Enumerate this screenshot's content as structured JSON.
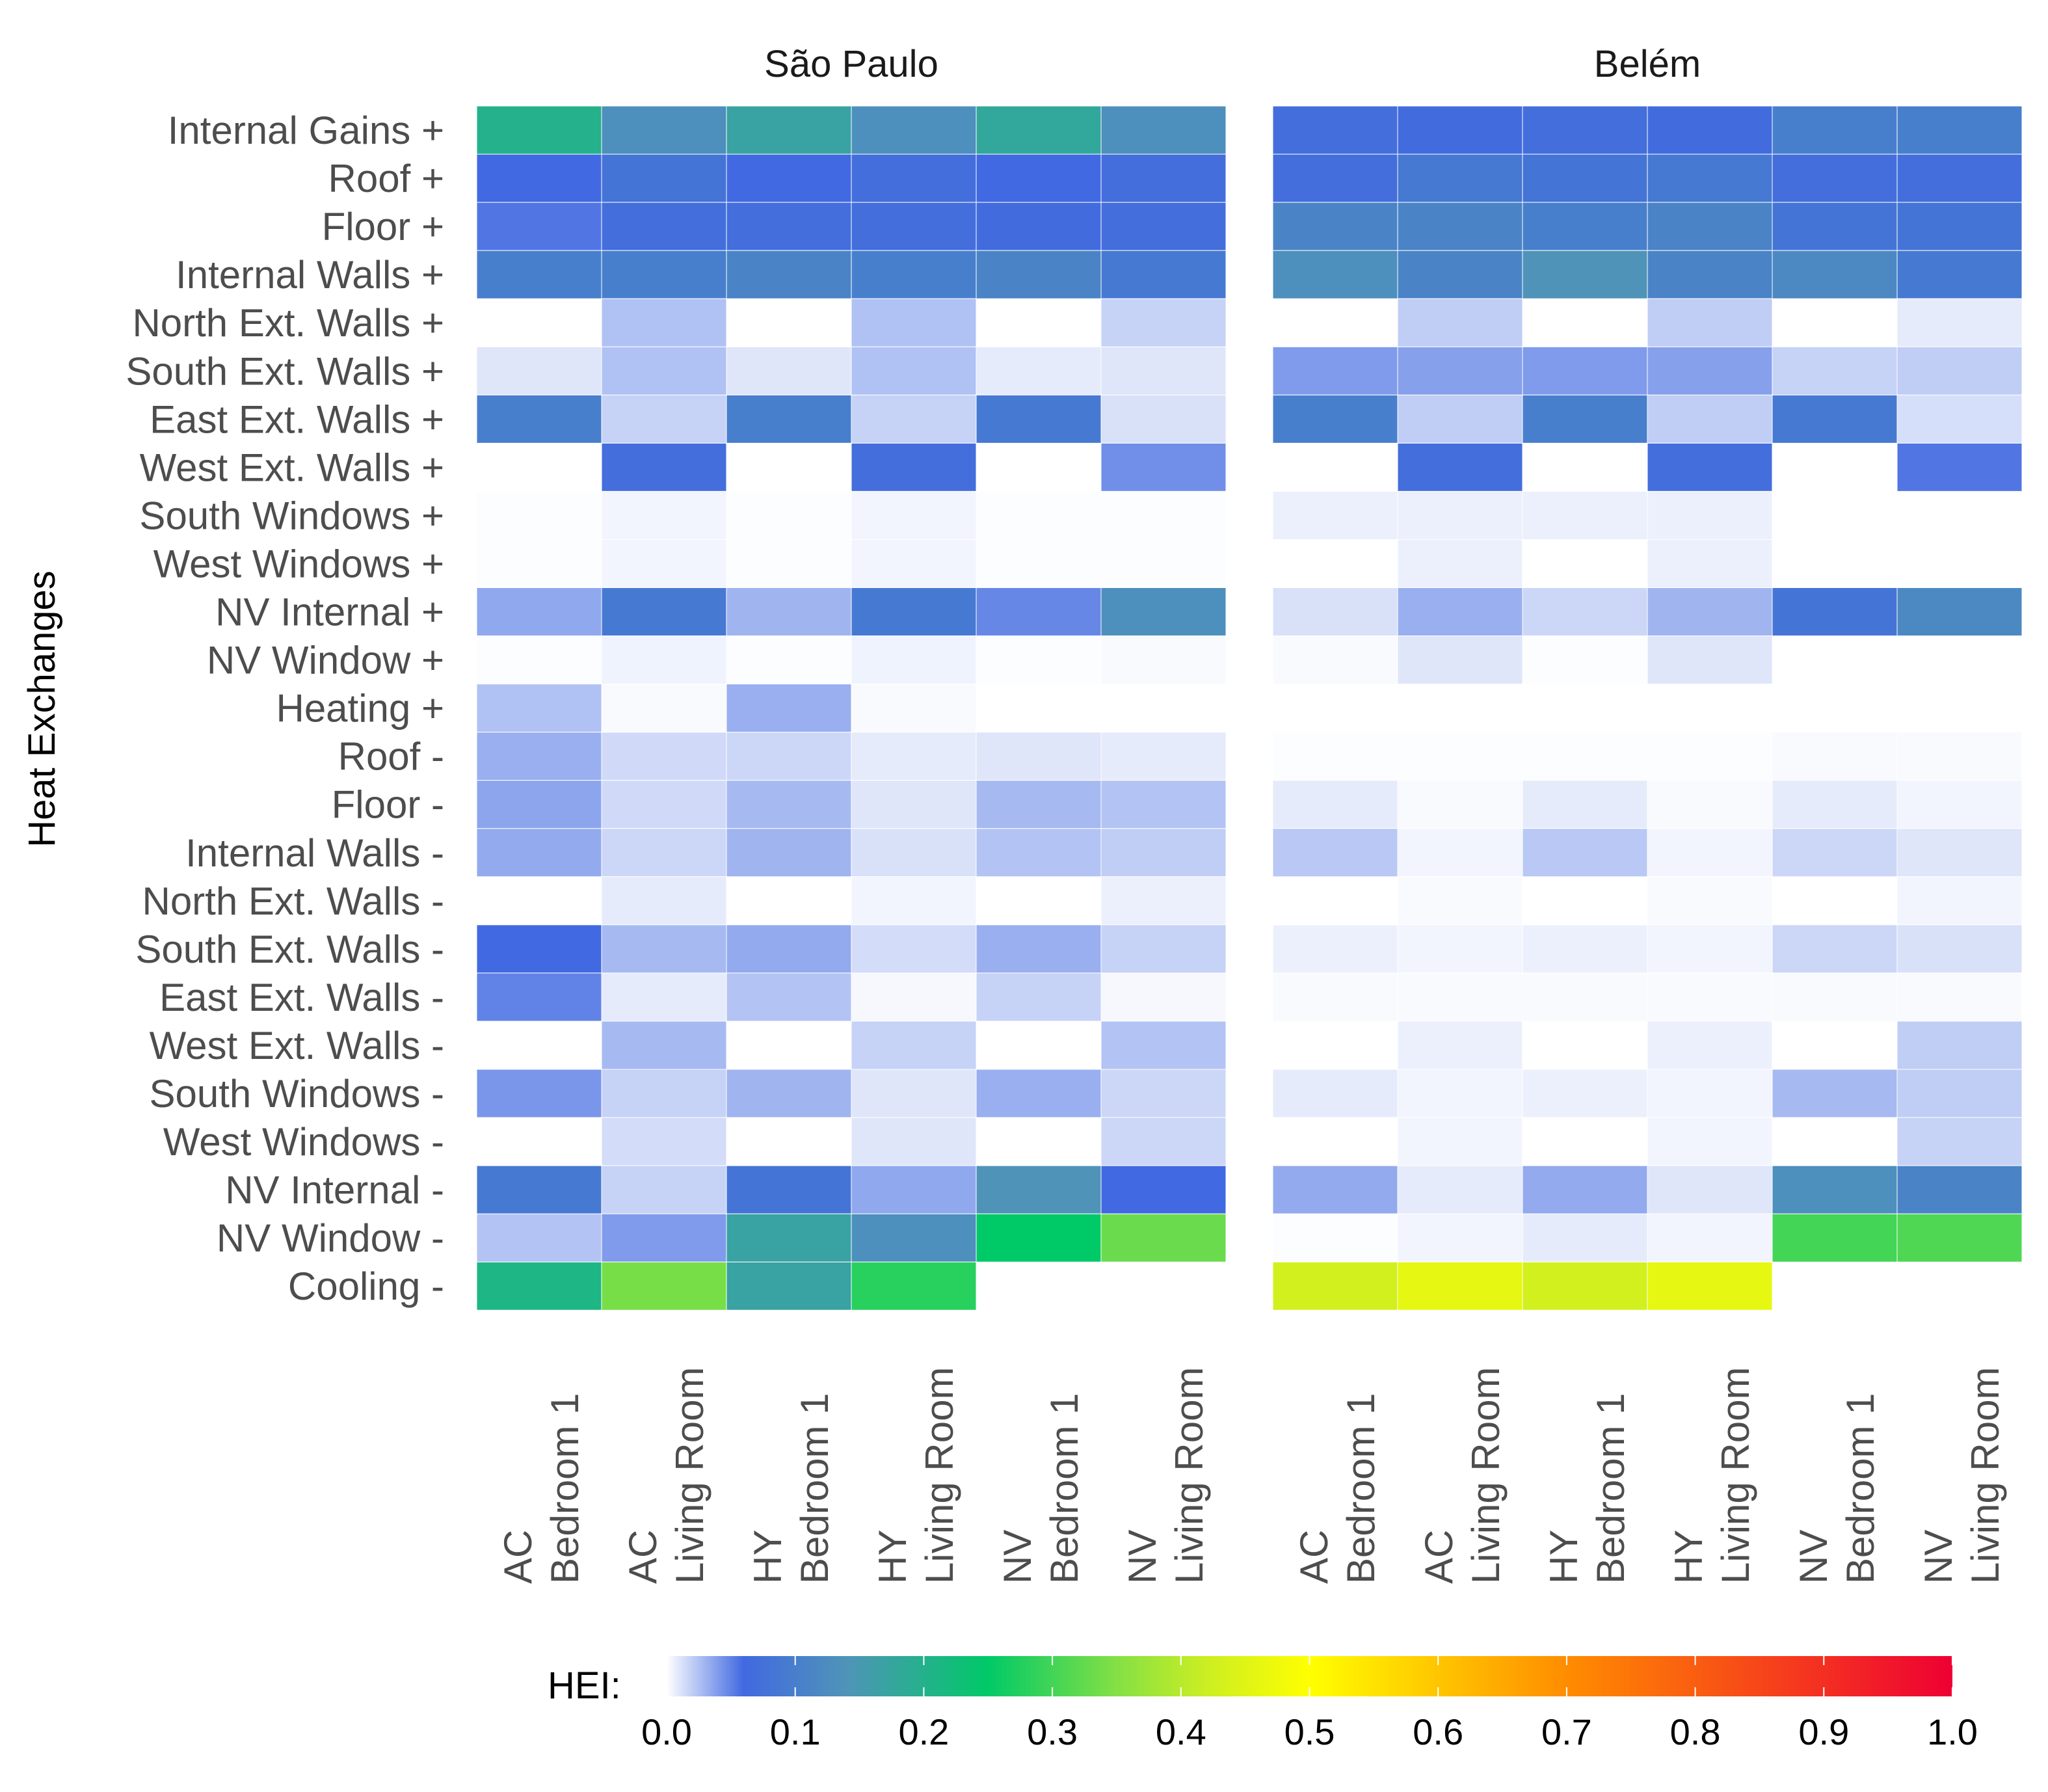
{
  "chart_data": {
    "type": "heatmap",
    "ylabel": "Heat Exchanges",
    "rows": [
      "Internal Gains +",
      "Roof +",
      "Floor +",
      "Internal Walls +",
      "North Ext. Walls +",
      "South Ext. Walls +",
      "East Ext. Walls +",
      "West Ext. Walls +",
      "South Windows +",
      "West Windows +",
      "NV Internal +",
      "NV Window +",
      "Heating +",
      "Roof -",
      "Floor -",
      "Internal Walls -",
      "North Ext. Walls -",
      "South Ext. Walls -",
      "East Ext. Walls -",
      "West Ext. Walls -",
      "South Windows -",
      "West Windows -",
      "NV Internal -",
      "NV Window -",
      "Cooling -"
    ],
    "columns": [
      {
        "line1": "AC",
        "line2": "Bedroom 1"
      },
      {
        "line1": "AC",
        "line2": "Living Room"
      },
      {
        "line1": "HY",
        "line2": "Bedroom 1"
      },
      {
        "line1": "HY",
        "line2": "Living Room"
      },
      {
        "line1": "NV",
        "line2": "Bedroom 1"
      },
      {
        "line1": "NV",
        "line2": "Living Room"
      }
    ],
    "facets": [
      {
        "title": "São Paulo",
        "values": [
          [
            0.2,
            0.13,
            0.17,
            0.13,
            0.18,
            0.13
          ],
          [
            0.06,
            0.08,
            0.06,
            0.07,
            0.06,
            0.07
          ],
          [
            0.055,
            0.07,
            0.07,
            0.07,
            0.065,
            0.07
          ],
          [
            0.1,
            0.1,
            0.11,
            0.1,
            0.11,
            0.09
          ],
          [
            null,
            0.025,
            null,
            0.025,
            null,
            0.018
          ],
          [
            0.01,
            0.025,
            0.01,
            0.025,
            0.008,
            0.01
          ],
          [
            0.1,
            0.018,
            0.1,
            0.018,
            0.09,
            0.012
          ],
          [
            null,
            0.07,
            null,
            0.07,
            null,
            0.045
          ],
          [
            0.001,
            0.004,
            0.001,
            0.004,
            0.001,
            0.001
          ],
          [
            0.001,
            0.004,
            0.001,
            0.004,
            0.001,
            0.001
          ],
          [
            0.035,
            0.09,
            0.03,
            0.09,
            0.048,
            0.13
          ],
          [
            0.001,
            0.005,
            0.001,
            0.005,
            0.001,
            0.002
          ],
          [
            0.025,
            0.002,
            0.032,
            0.002,
            null,
            null
          ],
          [
            0.032,
            0.015,
            0.016,
            0.008,
            0.01,
            0.008
          ],
          [
            0.036,
            0.015,
            0.028,
            0.01,
            0.028,
            0.024
          ],
          [
            0.034,
            0.016,
            0.03,
            0.012,
            0.024,
            0.02
          ],
          [
            null,
            0.008,
            null,
            0.004,
            null,
            0.006
          ],
          [
            0.06,
            0.028,
            0.034,
            0.014,
            0.032,
            0.018
          ],
          [
            0.05,
            0.008,
            0.024,
            0.003,
            0.018,
            0.003
          ],
          [
            null,
            0.028,
            null,
            0.018,
            null,
            0.024
          ],
          [
            0.042,
            0.018,
            0.03,
            0.01,
            0.032,
            0.016
          ],
          [
            null,
            0.014,
            null,
            0.01,
            null,
            0.016
          ],
          [
            0.09,
            0.018,
            0.08,
            0.035,
            0.14,
            0.06
          ],
          [
            0.024,
            0.04,
            0.17,
            0.13,
            0.25,
            0.33
          ],
          [
            0.21,
            0.34,
            0.17,
            0.28,
            null,
            null
          ]
        ]
      },
      {
        "title": "Belém",
        "values": [
          [
            0.07,
            0.065,
            0.07,
            0.065,
            0.1,
            0.1
          ],
          [
            0.07,
            0.09,
            0.08,
            0.09,
            0.07,
            0.07
          ],
          [
            0.11,
            0.11,
            0.1,
            0.11,
            0.08,
            0.08
          ],
          [
            0.13,
            0.11,
            0.14,
            0.11,
            0.12,
            0.09
          ],
          [
            null,
            0.02,
            null,
            0.02,
            null,
            0.008
          ],
          [
            0.04,
            0.038,
            0.04,
            0.038,
            0.018,
            0.02
          ],
          [
            0.1,
            0.02,
            0.1,
            0.02,
            0.09,
            0.013
          ],
          [
            null,
            0.07,
            null,
            0.07,
            null,
            0.055
          ],
          [
            0.006,
            0.006,
            0.006,
            0.006,
            null,
            null
          ],
          [
            null,
            0.006,
            null,
            0.006,
            null,
            null
          ],
          [
            0.012,
            0.032,
            0.016,
            0.03,
            0.08,
            0.12
          ],
          [
            0.002,
            0.01,
            0.001,
            0.01,
            null,
            null
          ],
          [
            null,
            null,
            null,
            null,
            null,
            null
          ],
          [
            0.001,
            0.001,
            0.001,
            0.001,
            0.002,
            0.002
          ],
          [
            0.008,
            0.002,
            0.008,
            0.002,
            0.008,
            0.004
          ],
          [
            0.022,
            0.004,
            0.022,
            0.004,
            0.016,
            0.01
          ],
          [
            null,
            0.002,
            null,
            0.002,
            null,
            0.004
          ],
          [
            0.006,
            0.004,
            0.006,
            0.004,
            0.016,
            0.012
          ],
          [
            0.002,
            0.002,
            0.002,
            0.002,
            0.002,
            0.002
          ],
          [
            null,
            0.006,
            null,
            0.006,
            null,
            0.02
          ],
          [
            0.008,
            0.004,
            0.006,
            0.004,
            0.028,
            0.02
          ],
          [
            null,
            0.004,
            null,
            0.004,
            null,
            0.018
          ],
          [
            0.034,
            0.008,
            0.034,
            0.01,
            0.13,
            0.11
          ],
          [
            0.001,
            0.004,
            0.008,
            0.004,
            0.3,
            0.31
          ],
          [
            0.43,
            0.46,
            0.43,
            0.46,
            null,
            null
          ]
        ]
      }
    ],
    "legend": {
      "title": "HEI:",
      "ticks": [
        "0.0",
        "0.1",
        "0.2",
        "0.3",
        "0.4",
        "0.5",
        "0.6",
        "0.7",
        "0.8",
        "0.9",
        "1.0"
      ],
      "colors": [
        {
          "v": 0.0,
          "c": "#ffffff"
        },
        {
          "v": 0.06,
          "c": "#4169e1"
        },
        {
          "v": 0.14,
          "c": "#4f94b8"
        },
        {
          "v": 0.25,
          "c": "#00c967"
        },
        {
          "v": 0.35,
          "c": "#84e045"
        },
        {
          "v": 0.42,
          "c": "#ccee22"
        },
        {
          "v": 0.5,
          "c": "#ffff00"
        },
        {
          "v": 0.7,
          "c": "#ff8c00"
        },
        {
          "v": 1.0,
          "c": "#ee0033"
        }
      ]
    }
  }
}
